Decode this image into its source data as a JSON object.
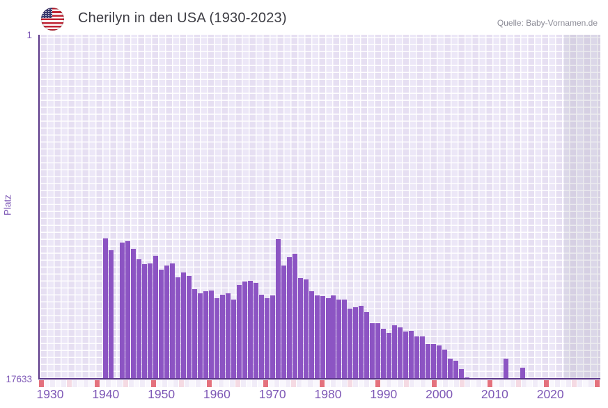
{
  "header": {
    "title": "Cherilyn in den USA (1930-2023)",
    "source": "Quelle: Baby-Vornamen.de",
    "flag_icon": "us-flag-icon"
  },
  "chart_data": {
    "type": "bar",
    "title": "Cherilyn in den USA (1930-2023)",
    "xlabel": "",
    "ylabel": "Platz",
    "legend": "none",
    "grid": true,
    "y_axis": {
      "min": 1,
      "max": 17633,
      "scale": "log",
      "inverted": true,
      "top_label": "1",
      "bottom_label": "17633"
    },
    "x_axis": {
      "range_start": 1928,
      "range_end": 2029,
      "tick_years": [
        1930,
        1940,
        1950,
        1960,
        1970,
        1980,
        1990,
        2000,
        2010,
        2020
      ]
    },
    "shaded_after_year": 2023,
    "colors": {
      "bar": "#8c54c3",
      "axis_line": "#5a3588",
      "axis_text": "#7e58b6",
      "title_text": "#3d3d44",
      "source_text": "#8b8b96",
      "decade_cell": "#e4717d",
      "half_decade_cell": "#f5dae3",
      "strip_cell_even": "#f1ecf8",
      "strip_cell_odd": "#f9f7fd"
    },
    "points": [
      {
        "year": 1940,
        "rank": 329
      },
      {
        "year": 1941,
        "rank": 452
      },
      {
        "year": 1943,
        "rank": 364
      },
      {
        "year": 1944,
        "rank": 350
      },
      {
        "year": 1945,
        "rank": 439
      },
      {
        "year": 1946,
        "rank": 590
      },
      {
        "year": 1947,
        "rank": 684
      },
      {
        "year": 1948,
        "rank": 658
      },
      {
        "year": 1949,
        "rank": 535
      },
      {
        "year": 1950,
        "rank": 794
      },
      {
        "year": 1951,
        "rank": 705
      },
      {
        "year": 1952,
        "rank": 664
      },
      {
        "year": 1953,
        "rank": 986
      },
      {
        "year": 1954,
        "rank": 867
      },
      {
        "year": 1955,
        "rank": 939
      },
      {
        "year": 1956,
        "rank": 1380
      },
      {
        "year": 1957,
        "rank": 1538
      },
      {
        "year": 1958,
        "rank": 1464
      },
      {
        "year": 1959,
        "rank": 1435
      },
      {
        "year": 1960,
        "rank": 1784
      },
      {
        "year": 1961,
        "rank": 1616
      },
      {
        "year": 1962,
        "rank": 1553
      },
      {
        "year": 1963,
        "rank": 1837
      },
      {
        "year": 1964,
        "rank": 1226
      },
      {
        "year": 1965,
        "rank": 1110
      },
      {
        "year": 1966,
        "rank": 1099
      },
      {
        "year": 1967,
        "rank": 1144
      },
      {
        "year": 1968,
        "rank": 1600
      },
      {
        "year": 1969,
        "rank": 1766
      },
      {
        "year": 1970,
        "rank": 1648
      },
      {
        "year": 1971,
        "rank": 333
      },
      {
        "year": 1972,
        "rank": 705
      },
      {
        "year": 1973,
        "rank": 556
      },
      {
        "year": 1974,
        "rank": 499
      },
      {
        "year": 1975,
        "rank": 1006
      },
      {
        "year": 1976,
        "rank": 1046
      },
      {
        "year": 1977,
        "rank": 1450
      },
      {
        "year": 1978,
        "rank": 1648
      },
      {
        "year": 1979,
        "rank": 1697
      },
      {
        "year": 1980,
        "rank": 1784
      },
      {
        "year": 1981,
        "rank": 1648
      },
      {
        "year": 1982,
        "rank": 1855
      },
      {
        "year": 1983,
        "rank": 1855
      },
      {
        "year": 1984,
        "rank": 2375
      },
      {
        "year": 1985,
        "rank": 2328
      },
      {
        "year": 1986,
        "rank": 2195
      },
      {
        "year": 1987,
        "rank": 2673
      },
      {
        "year": 1988,
        "rank": 3667
      },
      {
        "year": 1989,
        "rank": 3667
      },
      {
        "year": 1990,
        "rank": 4295
      },
      {
        "year": 1991,
        "rank": 4742
      },
      {
        "year": 1992,
        "rank": 3853
      },
      {
        "year": 1993,
        "rank": 4088
      },
      {
        "year": 1994,
        "rank": 4648
      },
      {
        "year": 1995,
        "rank": 4469
      },
      {
        "year": 1996,
        "rank": 5287
      },
      {
        "year": 1997,
        "rank": 5287
      },
      {
        "year": 1998,
        "rank": 6567
      },
      {
        "year": 1999,
        "rank": 6632
      },
      {
        "year": 2000,
        "rank": 6833
      },
      {
        "year": 2001,
        "rank": 7617
      },
      {
        "year": 2002,
        "rank": 9847
      },
      {
        "year": 2003,
        "rank": 10448
      },
      {
        "year": 2004,
        "rank": 13374
      },
      {
        "year": 2005,
        "rank": 16786
      },
      {
        "year": 2012,
        "rank": 9847
      },
      {
        "year": 2015,
        "rank": 12729
      }
    ]
  }
}
